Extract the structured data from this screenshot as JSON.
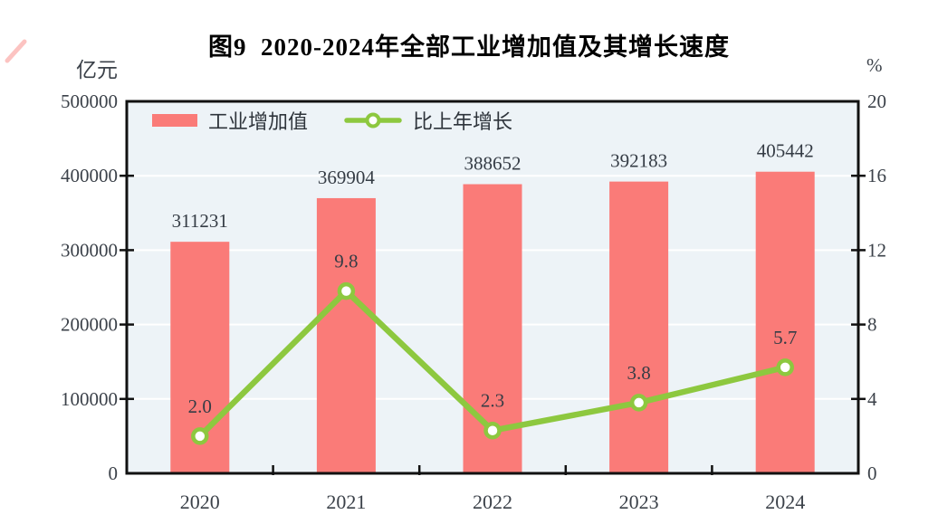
{
  "chart_data": {
    "type": "bar+line",
    "title": "图9  2020-2024年全部工业增加值及其增长速度",
    "categories": [
      "2020",
      "2021",
      "2022",
      "2023",
      "2024"
    ],
    "series": [
      {
        "name": "工业增加值",
        "type": "bar",
        "axis": "left",
        "color": "#FA7B78",
        "values": [
          311231,
          369904,
          388652,
          392183,
          405442
        ],
        "labels": [
          "311231",
          "369904",
          "388652",
          "392183",
          "405442"
        ]
      },
      {
        "name": "比上年增长",
        "type": "line",
        "axis": "right",
        "color": "#8DC83F",
        "marker": "circle-white-fill",
        "values": [
          2.0,
          9.8,
          2.3,
          3.8,
          5.7
        ],
        "labels": [
          "2.0",
          "9.8",
          "2.3",
          "3.8",
          "5.7"
        ]
      }
    ],
    "left_axis": {
      "unit": "亿元",
      "min": 0,
      "max": 500000,
      "ticks": [
        0,
        100000,
        200000,
        300000,
        400000,
        500000
      ],
      "tick_labels": [
        "0",
        "100000",
        "200000",
        "300000",
        "400000",
        "500000"
      ]
    },
    "right_axis": {
      "unit": "%",
      "min": 0,
      "max": 20,
      "ticks": [
        0,
        4,
        8,
        12,
        16,
        20
      ],
      "tick_labels": [
        "0",
        "4",
        "8",
        "12",
        "16",
        "20"
      ]
    },
    "grid": "on",
    "legend_position": "top-left-inside",
    "colors": {
      "bar": "#FA7B78",
      "line": "#8DC83F",
      "marker_fill": "#FFFFFF",
      "plot_background": "#EDF3F7",
      "gridline": "#FFFFFF",
      "frame": "#111111",
      "value_text": "#353c45",
      "axis_text": "#3b4149",
      "title_text": "#000000"
    }
  }
}
